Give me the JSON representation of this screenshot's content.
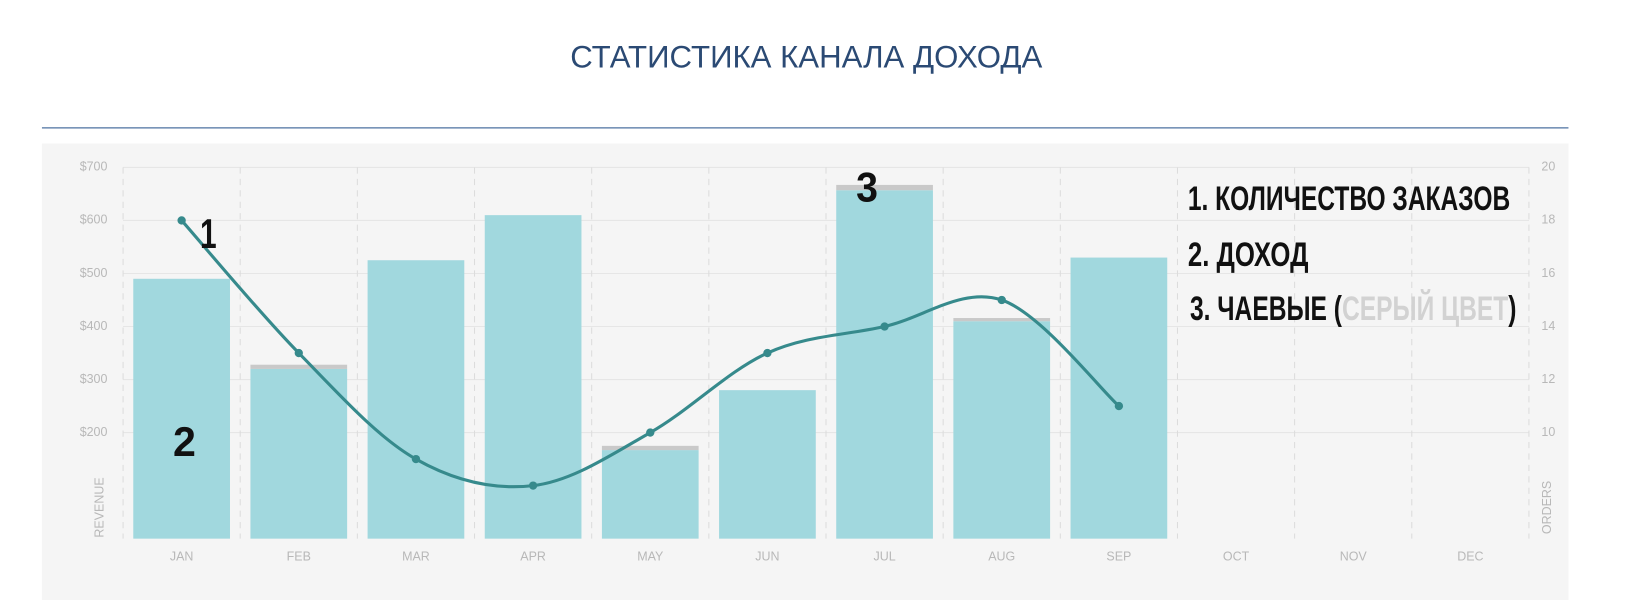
{
  "chart_data": {
    "type": "bar-line",
    "title": "СТАТИСТИКА КАНАЛА ДОХОДА",
    "categories": [
      "JAN",
      "FEB",
      "MAR",
      "APR",
      "MAY",
      "JUN",
      "JUL",
      "AUG",
      "SEP",
      "OCT",
      "NOV",
      "DEC"
    ],
    "series": [
      {
        "type": "bar",
        "color": "#a1d8de",
        "values": [
          490,
          320,
          525,
          610,
          167,
          280,
          657,
          410,
          530,
          null,
          null,
          null
        ]
      },
      {
        "type": "bar",
        "stacked": true,
        "color": "#c9c9c9",
        "values": [
          null,
          8,
          null,
          null,
          8,
          null,
          10,
          6,
          null,
          null,
          null,
          null
        ]
      },
      {
        "type": "line",
        "axis": "y2",
        "color": "#368a8c",
        "values": [
          18,
          13,
          9,
          8,
          10,
          13,
          14,
          15,
          11,
          null,
          null,
          null
        ]
      }
    ],
    "ylim": [
      0,
      700
    ],
    "yticks": [
      {
        "value": 200,
        "label": "$200"
      },
      {
        "value": 300,
        "label": "$300"
      },
      {
        "value": 400,
        "label": "$400"
      },
      {
        "value": 500,
        "label": "$500"
      },
      {
        "value": 600,
        "label": "$600"
      },
      {
        "value": 700,
        "label": "$700"
      }
    ],
    "y2lim": [
      6,
      20
    ],
    "y2ticks": [
      10,
      12,
      14,
      16,
      18,
      20
    ],
    "ylabel": "REVENUE",
    "y2label": "ORDERS",
    "grid": true,
    "annotations": [
      "1",
      "2",
      "3"
    ],
    "legend": {
      "items": [
        "1. КОЛИЧЕСТВО ЗАКАЗОВ",
        "2. ДОХОД",
        [
          "3. ЧАЕВЫЕ (",
          "СЕРЫЙ ЦВЕТ",
          ")"
        ]
      ]
    }
  }
}
